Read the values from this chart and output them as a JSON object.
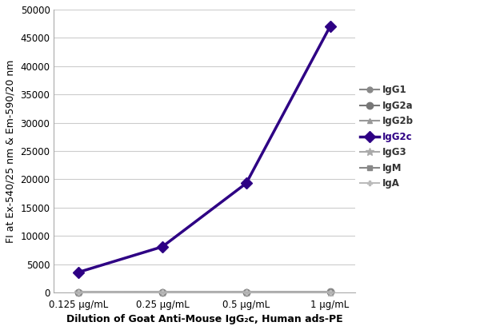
{
  "x_labels": [
    "0.125 μg/mL",
    "0.25 μg/mL",
    "0.5 μg/mL",
    "1 μg/mL"
  ],
  "x_values": [
    0,
    1,
    2,
    3
  ],
  "series": {
    "IgG1": {
      "values": [
        50,
        60,
        70,
        80
      ],
      "color": "#888888",
      "marker": "o",
      "markersize": 5,
      "linewidth": 1.5,
      "zorder": 2
    },
    "IgG2a": {
      "values": [
        60,
        70,
        80,
        100
      ],
      "color": "#777777",
      "marker": "o",
      "markersize": 6,
      "linewidth": 1.5,
      "zorder": 2
    },
    "IgG2b": {
      "values": [
        50,
        60,
        70,
        80
      ],
      "color": "#999999",
      "marker": "^",
      "markersize": 5,
      "linewidth": 1.5,
      "zorder": 2
    },
    "IgG2c": {
      "values": [
        3600,
        8100,
        19300,
        47000
      ],
      "color": "#2e0084",
      "marker": "D",
      "markersize": 7,
      "linewidth": 2.5,
      "zorder": 5
    },
    "IgG3": {
      "values": [
        50,
        60,
        70,
        90
      ],
      "color": "#aaaaaa",
      "marker": "*",
      "markersize": 7,
      "linewidth": 1.5,
      "zorder": 2
    },
    "IgM": {
      "values": [
        60,
        70,
        80,
        110
      ],
      "color": "#888888",
      "marker": "s",
      "markersize": 5,
      "linewidth": 1.5,
      "zorder": 2
    },
    "IgA": {
      "values": [
        50,
        60,
        70,
        80
      ],
      "color": "#bbbbbb",
      "marker": "P",
      "markersize": 5,
      "linewidth": 1.5,
      "zorder": 2
    }
  },
  "legend_order": [
    "IgG1",
    "IgG2a",
    "IgG2b",
    "IgG2c",
    "IgG3",
    "IgM",
    "IgA"
  ],
  "ylabel": "FI at Ex-540/25 nm & Em-590/20 nm",
  "xlabel": "Dilution of Goat Anti-Mouse IgG₂c, Human ads-PE",
  "ylim": [
    0,
    50000
  ],
  "yticks": [
    0,
    5000,
    10000,
    15000,
    20000,
    25000,
    30000,
    35000,
    40000,
    45000,
    50000
  ],
  "ytick_labels": [
    "0",
    "5000",
    "10000",
    "15000",
    "20000",
    "25000",
    "30000",
    "35000",
    "40000",
    "45000",
    "50000"
  ],
  "axis_label_fontsize": 9,
  "tick_fontsize": 8.5,
  "legend_fontsize": 8.5,
  "background_color": "#ffffff",
  "grid_color": "#cccccc",
  "spine_color": "#aaaaaa"
}
